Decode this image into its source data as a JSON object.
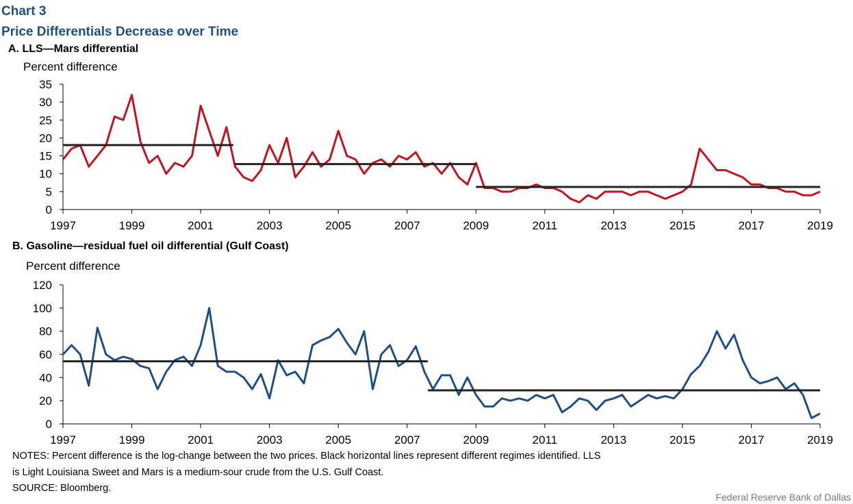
{
  "header": {
    "chart": "Chart 3",
    "title": "Price Differentials Decrease over Time"
  },
  "chart_data": [
    {
      "type": "line",
      "title": "A. LLS—Mars differential",
      "ylabel": "Percent difference",
      "xlim": [
        1997,
        2019
      ],
      "xticks": [
        1997,
        1999,
        2001,
        2003,
        2005,
        2007,
        2009,
        2011,
        2013,
        2015,
        2017,
        2019
      ],
      "ylim": [
        0,
        35
      ],
      "yticks": [
        0,
        5,
        10,
        15,
        20,
        25,
        30,
        35
      ],
      "x": [
        1997,
        1997.25,
        1997.5,
        1997.75,
        1998,
        1998.25,
        1998.5,
        1998.75,
        1999,
        1999.25,
        1999.5,
        1999.75,
        2000,
        2000.25,
        2000.5,
        2000.75,
        2001,
        2001.25,
        2001.5,
        2001.75,
        2002,
        2002.25,
        2002.5,
        2002.75,
        2003,
        2003.25,
        2003.5,
        2003.75,
        2004,
        2004.25,
        2004.5,
        2004.75,
        2005,
        2005.25,
        2005.5,
        2005.75,
        2006,
        2006.25,
        2006.5,
        2006.75,
        2007,
        2007.25,
        2007.5,
        2007.75,
        2008,
        2008.25,
        2008.5,
        2008.75,
        2009,
        2009.25,
        2009.5,
        2009.75,
        2010,
        2010.25,
        2010.5,
        2010.75,
        2011,
        2011.25,
        2011.5,
        2011.75,
        2012,
        2012.25,
        2012.5,
        2012.75,
        2013,
        2013.25,
        2013.5,
        2013.75,
        2014,
        2014.25,
        2014.5,
        2014.75,
        2015,
        2015.25,
        2015.5,
        2015.75,
        2016,
        2016.25,
        2016.5,
        2016.75,
        2017,
        2017.25,
        2017.5,
        2017.75,
        2018,
        2018.25,
        2018.5,
        2018.75,
        2019
      ],
      "series": [
        {
          "color": "#c0141e",
          "values": [
            14,
            17,
            18,
            12,
            15,
            18,
            26,
            25,
            32,
            19,
            13,
            15,
            10,
            13,
            12,
            15,
            29,
            22,
            15,
            23,
            12,
            9,
            8,
            11,
            18,
            13,
            20,
            9,
            12,
            16,
            12,
            14,
            22,
            15,
            14,
            10,
            13,
            14,
            12,
            15,
            14,
            16,
            12,
            13,
            10,
            13,
            9,
            7,
            13,
            6,
            6,
            5,
            5,
            6,
            6,
            7,
            6,
            6,
            5,
            3,
            2,
            4,
            3,
            5,
            5,
            5,
            4,
            5,
            5,
            4,
            3,
            4,
            5,
            7,
            17,
            14,
            11,
            11,
            10,
            9,
            7,
            7,
            6,
            6,
            5,
            5,
            4,
            4,
            5
          ]
        }
      ],
      "regimes": [
        {
          "x": [
            1997,
            2001.95
          ],
          "value": 18
        },
        {
          "x": [
            2002,
            2009
          ],
          "value": 12.7
        },
        {
          "x": [
            2009,
            2019
          ],
          "value": 6.3
        }
      ]
    },
    {
      "type": "line",
      "title": "B. Gasoline—residual fuel oil differential (Gulf Coast)",
      "ylabel": "Percent difference",
      "xlim": [
        1997,
        2019
      ],
      "xticks": [
        1997,
        1999,
        2001,
        2003,
        2005,
        2007,
        2009,
        2011,
        2013,
        2015,
        2017,
        2019
      ],
      "ylim": [
        0,
        120
      ],
      "yticks": [
        0,
        20,
        40,
        60,
        80,
        100,
        120
      ],
      "x": [
        1997,
        1997.25,
        1997.5,
        1997.75,
        1998,
        1998.25,
        1998.5,
        1998.75,
        1999,
        1999.25,
        1999.5,
        1999.75,
        2000,
        2000.25,
        2000.5,
        2000.75,
        2001,
        2001.25,
        2001.5,
        2001.75,
        2002,
        2002.25,
        2002.5,
        2002.75,
        2003,
        2003.25,
        2003.5,
        2003.75,
        2004,
        2004.25,
        2004.5,
        2004.75,
        2005,
        2005.25,
        2005.5,
        2005.75,
        2006,
        2006.25,
        2006.5,
        2006.75,
        2007,
        2007.25,
        2007.5,
        2007.75,
        2008,
        2008.25,
        2008.5,
        2008.75,
        2009,
        2009.25,
        2009.5,
        2009.75,
        2010,
        2010.25,
        2010.5,
        2010.75,
        2011,
        2011.25,
        2011.5,
        2011.75,
        2012,
        2012.25,
        2012.5,
        2012.75,
        2013,
        2013.25,
        2013.5,
        2013.75,
        2014,
        2014.25,
        2014.5,
        2014.75,
        2015,
        2015.25,
        2015.5,
        2015.75,
        2016,
        2016.25,
        2016.5,
        2016.75,
        2017,
        2017.25,
        2017.5,
        2017.75,
        2018,
        2018.25,
        2018.5,
        2018.75,
        2019
      ],
      "series": [
        {
          "color": "#1f4e87",
          "values": [
            60,
            68,
            60,
            33,
            83,
            60,
            55,
            58,
            56,
            50,
            48,
            30,
            45,
            55,
            58,
            50,
            68,
            100,
            50,
            45,
            45,
            40,
            30,
            43,
            22,
            55,
            42,
            45,
            35,
            68,
            72,
            75,
            82,
            70,
            60,
            80,
            30,
            60,
            68,
            50,
            55,
            67,
            45,
            30,
            42,
            42,
            25,
            40,
            25,
            15,
            15,
            22,
            20,
            22,
            20,
            25,
            22,
            25,
            10,
            15,
            22,
            20,
            12,
            20,
            22,
            25,
            15,
            20,
            25,
            22,
            24,
            22,
            30,
            43,
            50,
            62,
            80,
            65,
            77,
            55,
            40,
            35,
            37,
            40,
            30,
            35,
            25,
            5,
            9
          ]
        }
      ],
      "regimes": [
        {
          "x": [
            1997,
            2007.6
          ],
          "value": 54
        },
        {
          "x": [
            2007.6,
            2019
          ],
          "value": 29
        }
      ]
    }
  ],
  "notes": "NOTES: Percent difference is the log-change between the two prices. Black horizontal lines represent different regimes identified. LLS",
  "notes2": "is Light Louisiana Sweet and Mars is a medium-sour  crude from the U.S. Gulf Coast.",
  "source": "SOURCE:  Bloomberg.",
  "credit": "Federal Reserve  Bank of Dallas"
}
